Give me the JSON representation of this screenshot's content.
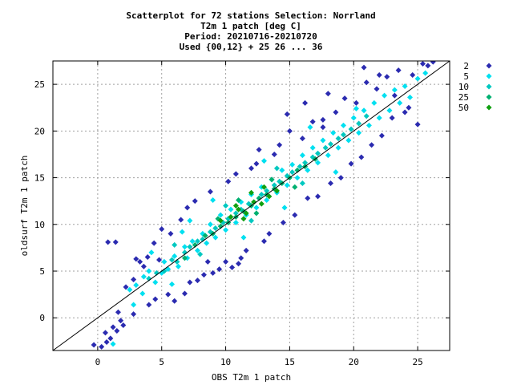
{
  "chart_data": {
    "type": "scatter",
    "title_lines": [
      "Scatterplot for   72 stations Selection: Norrland",
      "T2m 1 patch [deg C]",
      "Period: 20210716-20210720",
      "Used {00,12} + 25 26 ... 36"
    ],
    "xlabel": "OBS T2m 1 patch",
    "ylabel": "oldsurf T2m 1 patch",
    "xlim": [
      -3.5,
      27.5
    ],
    "ylim": [
      -3.5,
      27.5
    ],
    "xticks": [
      0,
      5,
      10,
      15,
      20,
      25
    ],
    "yticks": [
      0,
      5,
      10,
      15,
      20,
      25
    ],
    "grid": true,
    "diagonal_line": true,
    "legend_position": "right",
    "legend": [
      {
        "label": "2",
        "color": "#2b2bb0"
      },
      {
        "label": "5",
        "color": "#00e0f0"
      },
      {
        "label": "10",
        "color": "#00c8c0"
      },
      {
        "label": "25",
        "color": "#00b070"
      },
      {
        "label": "50",
        "color": "#10a010"
      }
    ],
    "series": [
      {
        "name": "2",
        "color": "#2b2bb0",
        "points": [
          [
            -0.3,
            -2.9
          ],
          [
            0.3,
            -3.1
          ],
          [
            0.7,
            -2.6
          ],
          [
            1.2,
            -1.0
          ],
          [
            0.6,
            -1.6
          ],
          [
            1.0,
            -2.2
          ],
          [
            1.5,
            -1.4
          ],
          [
            1.8,
            -0.3
          ],
          [
            0.8,
            8.1
          ],
          [
            1.4,
            8.1
          ],
          [
            2.0,
            -0.8
          ],
          [
            1.6,
            0.6
          ],
          [
            2.8,
            0.4
          ],
          [
            2.2,
            3.3
          ],
          [
            2.8,
            4.1
          ],
          [
            3.3,
            6.0
          ],
          [
            3.6,
            5.5
          ],
          [
            3.0,
            6.3
          ],
          [
            4.0,
            1.4
          ],
          [
            4.5,
            2.0
          ],
          [
            3.9,
            6.5
          ],
          [
            4.4,
            8.0
          ],
          [
            4.8,
            6.2
          ],
          [
            5.5,
            2.5
          ],
          [
            5.0,
            9.5
          ],
          [
            6.0,
            1.8
          ],
          [
            6.8,
            2.6
          ],
          [
            5.7,
            9.0
          ],
          [
            6.5,
            10.5
          ],
          [
            7.2,
            3.8
          ],
          [
            7.0,
            11.8
          ],
          [
            7.8,
            4.0
          ],
          [
            8.3,
            4.6
          ],
          [
            7.6,
            12.5
          ],
          [
            8.6,
            6.0
          ],
          [
            9.0,
            4.8
          ],
          [
            9.5,
            5.2
          ],
          [
            8.8,
            13.5
          ],
          [
            10.0,
            6.0
          ],
          [
            10.2,
            14.6
          ],
          [
            10.5,
            5.4
          ],
          [
            11.0,
            5.8
          ],
          [
            11.2,
            6.4
          ],
          [
            10.8,
            15.4
          ],
          [
            11.6,
            7.2
          ],
          [
            12.0,
            16.0
          ],
          [
            12.4,
            16.5
          ],
          [
            13.0,
            8.2
          ],
          [
            12.6,
            18.0
          ],
          [
            13.4,
            9.0
          ],
          [
            13.8,
            17.5
          ],
          [
            14.2,
            18.5
          ],
          [
            14.5,
            10.2
          ],
          [
            15.0,
            20.0
          ],
          [
            15.4,
            11.0
          ],
          [
            16.0,
            19.2
          ],
          [
            16.4,
            12.8
          ],
          [
            16.8,
            21.0
          ],
          [
            17.2,
            13.0
          ],
          [
            17.6,
            20.4
          ],
          [
            17.6,
            21.2
          ],
          [
            18.2,
            14.4
          ],
          [
            18.6,
            22.0
          ],
          [
            19.0,
            15.0
          ],
          [
            19.3,
            23.5
          ],
          [
            19.8,
            16.5
          ],
          [
            20.2,
            23.0
          ],
          [
            20.6,
            17.2
          ],
          [
            21.0,
            25.2
          ],
          [
            21.4,
            18.5
          ],
          [
            21.8,
            24.5
          ],
          [
            22.2,
            19.5
          ],
          [
            22.6,
            25.8
          ],
          [
            23.0,
            21.4
          ],
          [
            23.5,
            26.5
          ],
          [
            24.0,
            22.0
          ],
          [
            24.3,
            22.5
          ],
          [
            24.6,
            26.0
          ],
          [
            25.0,
            20.7
          ],
          [
            25.4,
            27.2
          ],
          [
            25.8,
            27.0
          ],
          [
            26.2,
            27.4
          ],
          [
            22.0,
            26.0
          ],
          [
            23.2,
            23.8
          ],
          [
            20.8,
            26.8
          ],
          [
            18.0,
            24.0
          ],
          [
            16.2,
            23.0
          ],
          [
            14.8,
            21.8
          ]
        ]
      },
      {
        "name": "5",
        "color": "#00e0f0",
        "points": [
          [
            2.5,
            3.0
          ],
          [
            3.0,
            3.5
          ],
          [
            3.5,
            2.6
          ],
          [
            3.6,
            4.4
          ],
          [
            4.0,
            5.0
          ],
          [
            4.5,
            3.8
          ],
          [
            5.0,
            4.8
          ],
          [
            5.2,
            6.0
          ],
          [
            5.5,
            5.2
          ],
          [
            6.0,
            6.6
          ],
          [
            6.3,
            5.5
          ],
          [
            6.8,
            7.6
          ],
          [
            7.0,
            6.4
          ],
          [
            7.4,
            8.2
          ],
          [
            7.8,
            7.2
          ],
          [
            8.2,
            9.0
          ],
          [
            8.5,
            8.0
          ],
          [
            8.8,
            10.0
          ],
          [
            9.2,
            8.6
          ],
          [
            9.6,
            11.0
          ],
          [
            10.0,
            9.4
          ],
          [
            10.4,
            11.6
          ],
          [
            10.8,
            10.2
          ],
          [
            11.2,
            12.4
          ],
          [
            11.6,
            11.0
          ],
          [
            12.0,
            13.2
          ],
          [
            12.4,
            11.8
          ],
          [
            12.8,
            14.0
          ],
          [
            13.2,
            12.6
          ],
          [
            13.6,
            14.8
          ],
          [
            14.0,
            13.4
          ],
          [
            14.4,
            15.8
          ],
          [
            14.8,
            14.2
          ],
          [
            15.2,
            16.4
          ],
          [
            15.6,
            15.0
          ],
          [
            16.0,
            17.4
          ],
          [
            16.4,
            15.8
          ],
          [
            16.8,
            18.2
          ],
          [
            17.2,
            16.6
          ],
          [
            17.6,
            19.0
          ],
          [
            18.0,
            17.4
          ],
          [
            18.4,
            19.8
          ],
          [
            18.8,
            18.2
          ],
          [
            19.2,
            20.6
          ],
          [
            19.6,
            19.0
          ],
          [
            20.0,
            21.4
          ],
          [
            20.4,
            19.8
          ],
          [
            20.8,
            22.2
          ],
          [
            21.2,
            20.6
          ],
          [
            21.6,
            23.0
          ],
          [
            22.0,
            21.4
          ],
          [
            22.4,
            23.8
          ],
          [
            22.8,
            22.2
          ],
          [
            23.2,
            24.4
          ],
          [
            23.6,
            23.0
          ],
          [
            24.0,
            24.8
          ],
          [
            24.4,
            23.6
          ],
          [
            25.0,
            25.6
          ],
          [
            25.6,
            26.2
          ],
          [
            2.8,
            1.4
          ],
          [
            1.2,
            -2.8
          ],
          [
            5.8,
            3.6
          ],
          [
            7.2,
            10.4
          ],
          [
            9.0,
            12.6
          ],
          [
            11.4,
            8.6
          ],
          [
            13.0,
            16.8
          ],
          [
            14.6,
            11.8
          ],
          [
            16.6,
            20.4
          ],
          [
            18.6,
            15.6
          ],
          [
            20.2,
            22.4
          ],
          [
            6.6,
            9.2
          ],
          [
            4.2,
            7.0
          ]
        ]
      },
      {
        "name": "10",
        "color": "#00c8c0",
        "points": [
          [
            4.0,
            4.2
          ],
          [
            4.6,
            4.8
          ],
          [
            5.2,
            5.0
          ],
          [
            5.8,
            6.2
          ],
          [
            6.2,
            6.0
          ],
          [
            6.8,
            7.0
          ],
          [
            7.2,
            7.6
          ],
          [
            7.8,
            8.2
          ],
          [
            8.2,
            8.4
          ],
          [
            8.8,
            9.2
          ],
          [
            9.2,
            9.6
          ],
          [
            9.8,
            10.2
          ],
          [
            10.2,
            10.6
          ],
          [
            10.8,
            11.2
          ],
          [
            11.2,
            11.6
          ],
          [
            11.8,
            12.2
          ],
          [
            12.2,
            12.4
          ],
          [
            12.8,
            13.2
          ],
          [
            13.2,
            13.6
          ],
          [
            13.8,
            14.2
          ],
          [
            14.2,
            14.6
          ],
          [
            14.8,
            15.2
          ],
          [
            15.2,
            15.6
          ],
          [
            15.8,
            16.2
          ],
          [
            16.2,
            16.6
          ],
          [
            16.8,
            17.2
          ],
          [
            17.2,
            17.6
          ],
          [
            17.8,
            18.2
          ],
          [
            18.2,
            18.6
          ],
          [
            18.8,
            19.2
          ],
          [
            19.2,
            19.6
          ],
          [
            19.8,
            20.2
          ],
          [
            20.4,
            20.8
          ],
          [
            21.0,
            21.6
          ],
          [
            6.0,
            7.8
          ],
          [
            8.0,
            6.8
          ],
          [
            10.0,
            12.0
          ],
          [
            12.0,
            10.4
          ],
          [
            14.0,
            16.0
          ],
          [
            16.0,
            14.4
          ]
        ]
      },
      {
        "name": "25",
        "color": "#00b070",
        "points": [
          [
            6.8,
            6.4
          ],
          [
            7.6,
            7.8
          ],
          [
            8.4,
            8.8
          ],
          [
            9.0,
            9.0
          ],
          [
            9.6,
            9.8
          ],
          [
            10.2,
            10.2
          ],
          [
            10.8,
            10.8
          ],
          [
            11.4,
            11.4
          ],
          [
            12.0,
            12.0
          ],
          [
            12.6,
            12.8
          ],
          [
            13.2,
            13.2
          ],
          [
            13.8,
            13.8
          ],
          [
            14.4,
            14.4
          ],
          [
            15.0,
            15.0
          ],
          [
            15.6,
            15.8
          ],
          [
            16.2,
            16.2
          ],
          [
            17.0,
            17.0
          ],
          [
            9.4,
            10.6
          ],
          [
            11.0,
            12.6
          ],
          [
            12.4,
            11.2
          ],
          [
            13.6,
            14.8
          ],
          [
            15.4,
            14.0
          ]
        ]
      },
      {
        "name": "50",
        "color": "#10a010",
        "points": [
          [
            9.6,
            10.4
          ],
          [
            10.4,
            10.8
          ],
          [
            11.0,
            11.6
          ],
          [
            11.6,
            11.2
          ],
          [
            12.2,
            12.4
          ],
          [
            12.8,
            12.2
          ],
          [
            13.4,
            13.0
          ],
          [
            10.8,
            12.0
          ],
          [
            12.0,
            13.4
          ],
          [
            11.4,
            10.6
          ],
          [
            13.0,
            14.0
          ],
          [
            14.0,
            13.6
          ]
        ]
      }
    ]
  }
}
